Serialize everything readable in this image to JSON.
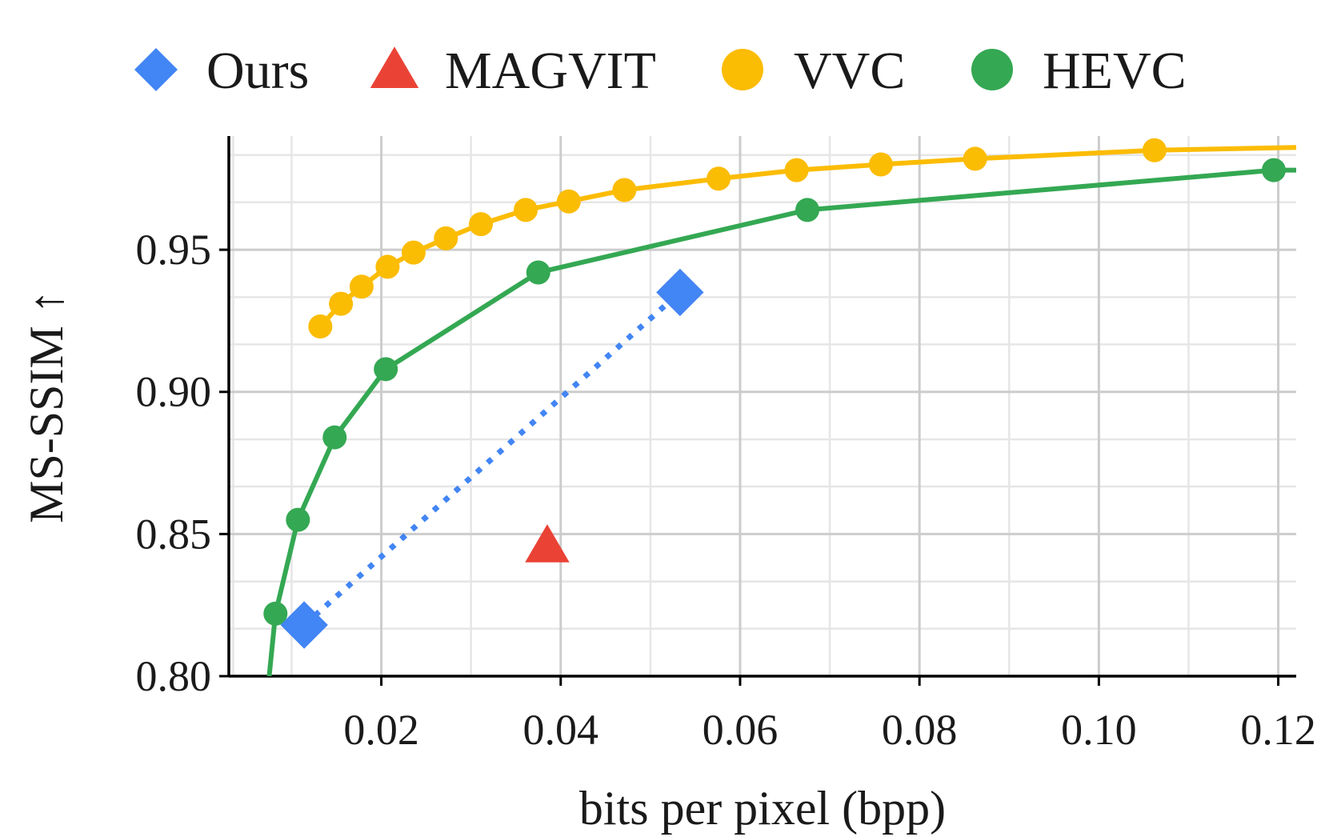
{
  "chart_data": {
    "type": "line",
    "title": "",
    "xlabel": "bits per pixel (bpp)",
    "ylabel": "MS-SSIM ↑",
    "xlim": [
      0.003,
      0.122
    ],
    "ylim": [
      0.8,
      0.99
    ],
    "x_major_ticks": [
      0.02,
      0.04,
      0.06,
      0.08,
      0.1,
      0.12
    ],
    "x_tick_labels": [
      "0.02",
      "0.04",
      "0.06",
      "0.08",
      "0.10",
      "0.12"
    ],
    "x_minor_ticks": [
      0.0035,
      0.01,
      0.03,
      0.05,
      0.07,
      0.09,
      0.11
    ],
    "y_major_ticks": [
      0.8,
      0.85,
      0.9,
      0.95
    ],
    "y_tick_labels": [
      "0.80",
      "0.85",
      "0.90",
      "0.95"
    ],
    "y_minor_ticks": [
      0.8167,
      0.8333,
      0.8667,
      0.8833,
      0.9167,
      0.9333,
      0.9667,
      0.9833
    ],
    "grid": true,
    "legend_position": "top",
    "series": [
      {
        "name": "Ours",
        "marker": "diamond",
        "line_style": "dotted",
        "color": "#4285f4",
        "x": [
          0.0114,
          0.0533
        ],
        "y": [
          0.818,
          0.935
        ]
      },
      {
        "name": "MAGVIT",
        "marker": "triangle",
        "line_style": "none",
        "color": "#ea4335",
        "x": [
          0.0385
        ],
        "y": [
          0.846
        ]
      },
      {
        "name": "VVC",
        "marker": "circle",
        "line_style": "solid",
        "color": "#fbbc04",
        "x": [
          0.0132,
          0.0155,
          0.0178,
          0.0207,
          0.0236,
          0.0272,
          0.0311,
          0.0361,
          0.0409,
          0.0471,
          0.0576,
          0.0663,
          0.0757,
          0.0862,
          0.1062,
          0.122
        ],
        "y": [
          0.923,
          0.931,
          0.937,
          0.944,
          0.949,
          0.954,
          0.959,
          0.964,
          0.967,
          0.971,
          0.975,
          0.978,
          0.98,
          0.982,
          0.985,
          0.986
        ]
      },
      {
        "name": "HEVC",
        "marker": "circle",
        "line_style": "solid",
        "color": "#34a853",
        "x": [
          0.0075,
          0.0082,
          0.0107,
          0.0148,
          0.0205,
          0.0375,
          0.0675,
          0.1195,
          0.122
        ],
        "y": [
          0.8,
          0.822,
          0.855,
          0.884,
          0.908,
          0.942,
          0.964,
          0.978,
          0.978
        ]
      }
    ],
    "marker_points_excluded": {
      "VVC": [
        15
      ],
      "HEVC": [
        0,
        8
      ]
    }
  }
}
